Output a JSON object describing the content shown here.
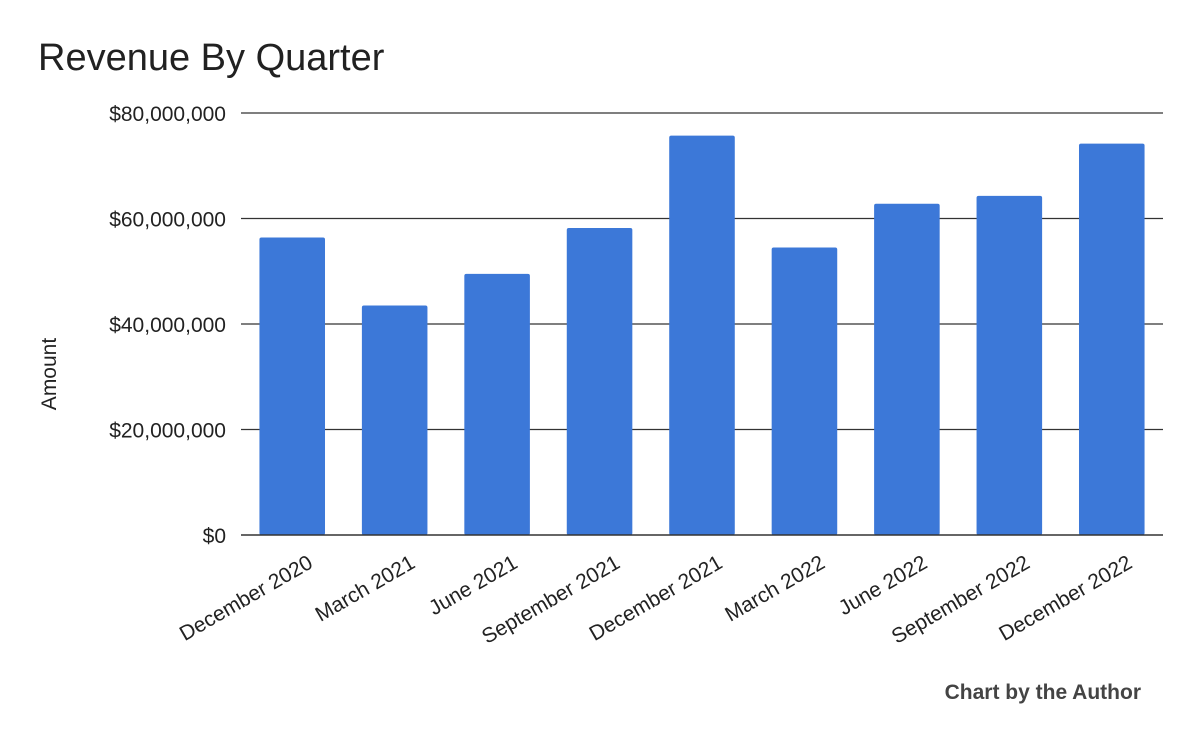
{
  "chart_data": {
    "type": "bar",
    "title": "Revenue By Quarter",
    "xlabel": "",
    "ylabel": "Amount",
    "categories": [
      "December 2020",
      "March 2021",
      "June 2021",
      "September 2021",
      "December 2021",
      "March 2022",
      "June 2022",
      "September 2022",
      "December 2022"
    ],
    "values": [
      56400000,
      43500000,
      49500000,
      58200000,
      75700000,
      54500000,
      62800000,
      64300000,
      74200000
    ],
    "ylim": [
      0,
      80000000
    ],
    "yticks": [
      0,
      20000000,
      40000000,
      60000000,
      80000000
    ],
    "ytick_labels": [
      "$0",
      "$20,000,000",
      "$40,000,000",
      "$60,000,000",
      "$80,000,000"
    ],
    "bar_color": "#3c78d8",
    "grid": true,
    "legend": "none",
    "credit": "Chart by the Author"
  }
}
